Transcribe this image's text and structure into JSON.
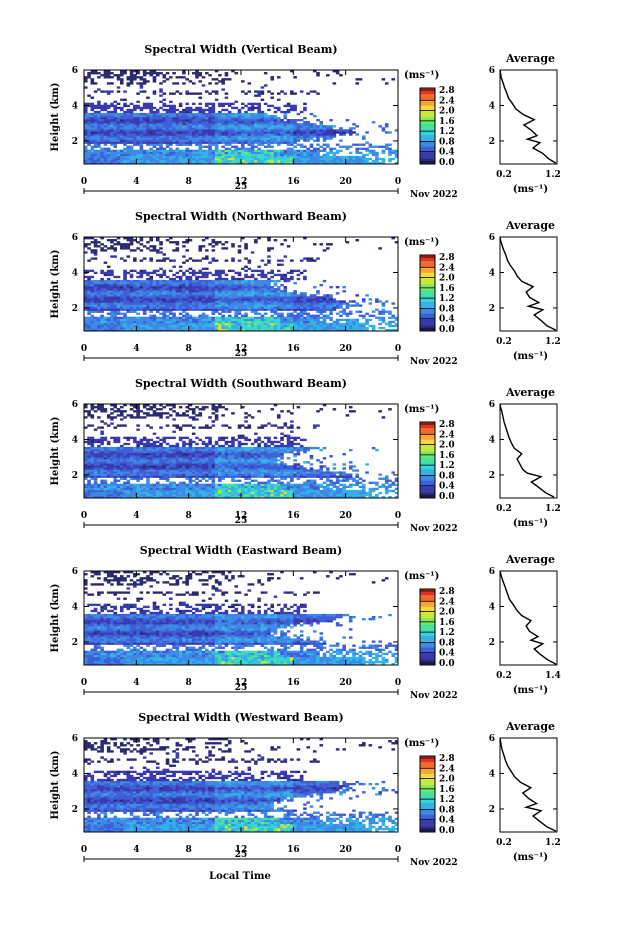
{
  "figure": {
    "xlabel": "Local Time"
  },
  "colorbar": {
    "unit": "(ms⁻¹)",
    "ticks": [
      "0.0",
      "0.4",
      "0.8",
      "1.2",
      "1.6",
      "2.0",
      "2.4",
      "2.8"
    ],
    "min": 0,
    "max": 2.8,
    "colors": [
      "#2a2a70",
      "#3a3ab0",
      "#3f5fd8",
      "#3c8ae6",
      "#35b2e8",
      "#38d6d0",
      "#46e39c",
      "#7bea5a",
      "#c4e93a",
      "#f2d93a",
      "#f7a534",
      "#f06a2c",
      "#e03226"
    ]
  },
  "chart_data": [
    {
      "type": "heatmap",
      "title": "Spectral Width (Vertical Beam)",
      "ylabel": "Height (km)",
      "xticks": [
        "0",
        "4",
        "8",
        "12",
        "16",
        "20",
        "0"
      ],
      "date_label": "Nov 2022",
      "day_label": "25",
      "xlim": [
        0,
        24
      ],
      "ylim": [
        0.7,
        6
      ],
      "yticks": [
        "2",
        "4",
        "6"
      ],
      "avg": {
        "title": "Average",
        "xlabel": "(ms⁻¹)",
        "xlim": [
          0.2,
          1.2
        ],
        "xticks": [
          "0.2",
          "1.2"
        ],
        "ylim": [
          0.7,
          6
        ],
        "yticks": [
          "2",
          "4",
          "6"
        ],
        "h": [
          0.75,
          1.0,
          1.3,
          1.6,
          1.9,
          2.1,
          2.3,
          2.6,
          2.9,
          3.2,
          3.5,
          3.8,
          4.1,
          4.4,
          4.7,
          5.0,
          5.3,
          5.6,
          5.8,
          6.0
        ],
        "v": [
          1.18,
          1.05,
          0.95,
          0.78,
          0.9,
          0.68,
          0.85,
          0.75,
          0.62,
          0.8,
          0.6,
          0.48,
          0.42,
          0.35,
          0.32,
          0.28,
          0.25,
          0.22,
          0.21,
          0.2
        ]
      }
    },
    {
      "type": "heatmap",
      "title": "Spectral Width (Northward Beam)",
      "ylabel": "Height (km)",
      "xticks": [
        "0",
        "4",
        "8",
        "12",
        "16",
        "20",
        "0"
      ],
      "date_label": "Nov 2022",
      "day_label": "25",
      "xlim": [
        0,
        24
      ],
      "ylim": [
        0.7,
        6
      ],
      "yticks": [
        "2",
        "4",
        "6"
      ],
      "avg": {
        "title": "Average",
        "xlabel": "(ms⁻¹)",
        "xlim": [
          0.2,
          1.2
        ],
        "xticks": [
          "0.2",
          "1.2"
        ],
        "ylim": [
          0.7,
          6
        ],
        "yticks": [
          "2",
          "4",
          "6"
        ],
        "h": [
          0.75,
          1.0,
          1.3,
          1.6,
          1.9,
          2.1,
          2.3,
          2.6,
          2.9,
          3.2,
          3.5,
          3.8,
          4.1,
          4.4,
          4.7,
          5.0,
          5.3,
          5.6,
          5.8,
          6.0
        ],
        "v": [
          1.18,
          1.02,
          0.92,
          0.8,
          0.95,
          0.7,
          0.88,
          0.72,
          0.66,
          0.78,
          0.58,
          0.5,
          0.45,
          0.38,
          0.33,
          0.3,
          0.26,
          0.23,
          0.21,
          0.2
        ]
      }
    },
    {
      "type": "heatmap",
      "title": "Spectral Width (Southward Beam)",
      "ylabel": "Height (km)",
      "xticks": [
        "0",
        "4",
        "8",
        "12",
        "16",
        "20",
        "0"
      ],
      "date_label": "Nov 2022",
      "day_label": "25",
      "xlim": [
        0,
        24
      ],
      "ylim": [
        0.7,
        6
      ],
      "yticks": [
        "2",
        "4",
        "6"
      ],
      "avg": {
        "title": "Average",
        "xlabel": "(ms⁻¹)",
        "xlim": [
          0.2,
          1.2
        ],
        "xticks": [
          "0.2",
          "1.2"
        ],
        "ylim": [
          0.7,
          6
        ],
        "yticks": [
          "2",
          "4",
          "6"
        ],
        "h": [
          0.75,
          1.0,
          1.3,
          1.6,
          1.9,
          2.1,
          2.3,
          2.6,
          2.9,
          3.2,
          3.5,
          3.8,
          4.1,
          4.4,
          4.7,
          5.0,
          5.3,
          5.6,
          5.8,
          6.0
        ],
        "v": [
          1.15,
          1.0,
          0.88,
          0.75,
          0.92,
          0.68,
          0.6,
          0.55,
          0.5,
          0.58,
          0.45,
          0.4,
          0.36,
          0.33,
          0.3,
          0.27,
          0.25,
          0.23,
          0.21,
          0.2
        ]
      }
    },
    {
      "type": "heatmap",
      "title": "Spectral Width (Eastward Beam)",
      "ylabel": "Height (km)",
      "xticks": [
        "0",
        "4",
        "8",
        "12",
        "16",
        "20",
        "0"
      ],
      "date_label": "Nov 2022",
      "day_label": "25",
      "xlim": [
        0,
        24
      ],
      "ylim": [
        0.7,
        6
      ],
      "yticks": [
        "2",
        "4",
        "6"
      ],
      "avg": {
        "title": "Average",
        "xlabel": "(ms⁻¹)",
        "xlim": [
          0.2,
          1.4
        ],
        "xticks": [
          "0.2",
          "1.4"
        ],
        "ylim": [
          0.7,
          6
        ],
        "yticks": [
          "2",
          "4",
          "6"
        ],
        "h": [
          0.75,
          1.0,
          1.3,
          1.6,
          1.9,
          2.1,
          2.3,
          2.6,
          2.9,
          3.2,
          3.5,
          3.8,
          4.1,
          4.4,
          4.7,
          5.0,
          5.3,
          5.6,
          5.8,
          6.0
        ],
        "v": [
          1.38,
          1.2,
          1.05,
          0.92,
          1.1,
          0.85,
          1.0,
          0.82,
          0.75,
          0.85,
          0.65,
          0.55,
          0.48,
          0.4,
          0.36,
          0.32,
          0.28,
          0.24,
          0.22,
          0.2
        ]
      }
    },
    {
      "type": "heatmap",
      "title": "Spectral Width (Westward Beam)",
      "ylabel": "Height (km)",
      "xticks": [
        "0",
        "4",
        "8",
        "12",
        "16",
        "20",
        "0"
      ],
      "date_label": "Nov 2022",
      "day_label": "25",
      "xlim": [
        0,
        24
      ],
      "ylim": [
        0.7,
        6
      ],
      "yticks": [
        "2",
        "4",
        "6"
      ],
      "avg": {
        "title": "Average",
        "xlabel": "(ms⁻¹)",
        "xlim": [
          0.2,
          1.2
        ],
        "xticks": [
          "0.2",
          "1.2"
        ],
        "ylim": [
          0.7,
          6
        ],
        "yticks": [
          "2",
          "4",
          "6"
        ],
        "h": [
          0.75,
          1.0,
          1.3,
          1.6,
          1.9,
          2.1,
          2.3,
          2.6,
          2.9,
          3.2,
          3.5,
          3.8,
          4.1,
          4.4,
          4.7,
          5.0,
          5.3,
          5.6,
          5.8,
          6.0
        ],
        "v": [
          1.18,
          1.02,
          0.9,
          0.78,
          0.92,
          0.66,
          0.84,
          0.7,
          0.6,
          0.74,
          0.56,
          0.46,
          0.4,
          0.34,
          0.3,
          0.27,
          0.24,
          0.22,
          0.21,
          0.2
        ]
      }
    }
  ]
}
